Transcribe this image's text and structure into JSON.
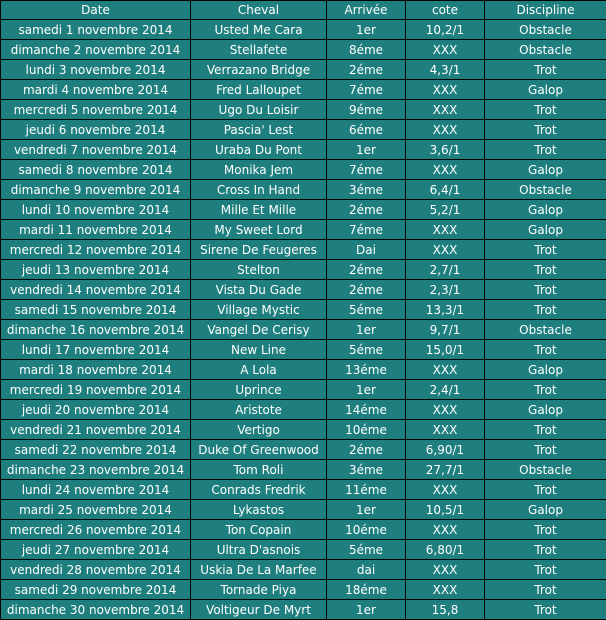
{
  "colors": {
    "teal": "#1f7f7f",
    "green": "#0fb04a",
    "red": "#c00000",
    "text": "#ffffff",
    "border": "#000000"
  },
  "headers": {
    "date": "Date",
    "horse": "Cheval",
    "arrival": "Arrivée",
    "odds": "cote",
    "discipline": "Discipline"
  },
  "rows": [
    {
      "date": "samedi 1 novembre 2014",
      "horse": "Usted Me Cara",
      "arrival": "1er",
      "odds": "10,2/1",
      "discipline": "Obstacle",
      "result": "win"
    },
    {
      "date": "dimanche 2 novembre 2014",
      "horse": "Stellafete",
      "arrival": "8éme",
      "odds": "XXX",
      "discipline": "Obstacle",
      "result": "lose"
    },
    {
      "date": "lundi 3 novembre 2014",
      "horse": "Verrazano Bridge",
      "arrival": "2éme",
      "odds": "4,3/1",
      "discipline": "Trot",
      "result": "win"
    },
    {
      "date": "mardi 4 novembre 2014",
      "horse": "Fred Lalloupet",
      "arrival": "7éme",
      "odds": "XXX",
      "discipline": "Galop",
      "result": "lose"
    },
    {
      "date": "mercredi 5 novembre 2014",
      "horse": "Ugo Du Loisir",
      "arrival": "9éme",
      "odds": "XXX",
      "discipline": "Trot",
      "result": "lose"
    },
    {
      "date": "jeudi 6 novembre 2014",
      "horse": "Pascia' Lest",
      "arrival": "6éme",
      "odds": "XXX",
      "discipline": "Trot",
      "result": "lose"
    },
    {
      "date": "vendredi 7 novembre 2014",
      "horse": "Uraba Du Pont",
      "arrival": "1er",
      "odds": "3,6/1",
      "discipline": "Trot",
      "result": "win"
    },
    {
      "date": "samedi 8 novembre 2014",
      "horse": "Monika Jem",
      "arrival": "7éme",
      "odds": "XXX",
      "discipline": "Galop",
      "result": "lose"
    },
    {
      "date": "dimanche 9 novembre 2014",
      "horse": "Cross In Hand",
      "arrival": "3éme",
      "odds": "6,4/1",
      "discipline": "Obstacle",
      "result": "win"
    },
    {
      "date": "lundi 10 novembre 2014",
      "horse": "Mille Et Mille",
      "arrival": "2éme",
      "odds": "5,2/1",
      "discipline": "Galop",
      "result": "win"
    },
    {
      "date": "mardi 11 novembre 2014",
      "horse": "My Sweet Lord",
      "arrival": "7éme",
      "odds": "XXX",
      "discipline": "Galop",
      "result": "lose"
    },
    {
      "date": "mercredi 12 novembre 2014",
      "horse": "Sirene De Feugeres",
      "arrival": "Dai",
      "odds": "XXX",
      "discipline": "Trot",
      "result": "lose"
    },
    {
      "date": "jeudi 13 novembre 2014",
      "horse": "Stelton",
      "arrival": "2éme",
      "odds": "2,7/1",
      "discipline": "Trot",
      "result": "win"
    },
    {
      "date": "vendredi 14 novembre 2014",
      "horse": "Vista Du Gade",
      "arrival": "2éme",
      "odds": "2,3/1",
      "discipline": "Trot",
      "result": "win"
    },
    {
      "date": "samedi 15 novembre 2014",
      "horse": "Village Mystic",
      "arrival": "5éme",
      "odds": "13,3/1",
      "discipline": "Trot",
      "result": "win"
    },
    {
      "date": "dimanche 16 novembre 2014",
      "horse": "Vangel De Cerisy",
      "arrival": "1er",
      "odds": "9,7/1",
      "discipline": "Obstacle",
      "result": "win"
    },
    {
      "date": "lundi 17 novembre 2014",
      "horse": "New Line",
      "arrival": "5éme",
      "odds": "15,0/1",
      "discipline": "Trot",
      "result": "win"
    },
    {
      "date": "mardi 18 novembre 2014",
      "horse": "A Lola",
      "arrival": "13éme",
      "odds": "XXX",
      "discipline": "Galop",
      "result": "lose"
    },
    {
      "date": "mercredi 19 novembre 2014",
      "horse": "Uprince",
      "arrival": "1er",
      "odds": "2,4/1",
      "discipline": "Trot",
      "result": "win"
    },
    {
      "date": "jeudi 20 novembre 2014",
      "horse": "Aristote",
      "arrival": "14éme",
      "odds": "XXX",
      "discipline": "Galop",
      "result": "lose"
    },
    {
      "date": "vendredi 21 novembre 2014",
      "horse": "Vertigo",
      "arrival": "10éme",
      "odds": "XXX",
      "discipline": "Trot",
      "result": "lose"
    },
    {
      "date": "samedi 22 novembre 2014",
      "horse": "Duke Of Greenwood",
      "arrival": "2éme",
      "odds": "6,90/1",
      "discipline": "Trot",
      "result": "win"
    },
    {
      "date": "dimanche 23 novembre 2014",
      "horse": "Tom Roli",
      "arrival": "3éme",
      "odds": "27,7/1",
      "discipline": "Obstacle",
      "result": "win"
    },
    {
      "date": "lundi 24 novembre 2014",
      "horse": "Conrads Fredrik",
      "arrival": "11éme",
      "odds": "XXX",
      "discipline": "Trot",
      "result": "lose"
    },
    {
      "date": "mardi 25 novembre 2014",
      "horse": "Lykastos",
      "arrival": "1er",
      "odds": "10,5/1",
      "discipline": "Galop",
      "result": "win"
    },
    {
      "date": "mercredi 26 novembre 2014",
      "horse": "Ton Copain",
      "arrival": "10éme",
      "odds": "XXX",
      "discipline": "Trot",
      "result": "lose"
    },
    {
      "date": "jeudi 27 novembre 2014",
      "horse": "Ultra D'asnois",
      "arrival": "5éme",
      "odds": "6,80/1",
      "discipline": "Trot",
      "result": "win"
    },
    {
      "date": "vendredi 28 novembre 2014",
      "horse": "Uskia De La Marfee",
      "arrival": "dai",
      "odds": "XXX",
      "discipline": "Trot",
      "result": "lose"
    },
    {
      "date": "samedi 29 novembre 2014",
      "horse": "Tornade Piya",
      "arrival": "18éme",
      "odds": "XXX",
      "discipline": "Trot",
      "result": "lose"
    },
    {
      "date": "dimanche 30 novembre 2014",
      "horse": "Voltigeur De Myrt",
      "arrival": "1er",
      "odds": "15,8",
      "discipline": "Trot",
      "result": "win"
    }
  ]
}
